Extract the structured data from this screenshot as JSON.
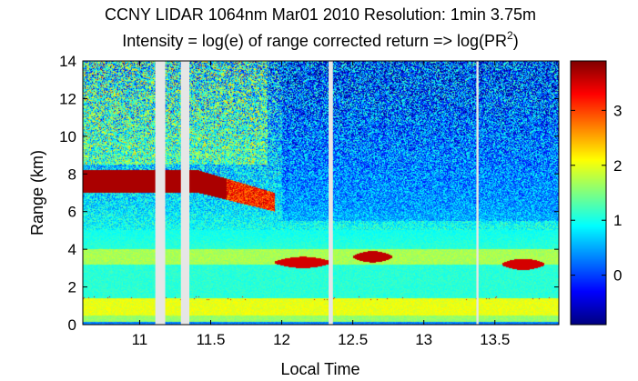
{
  "chart_data": {
    "type": "heatmap",
    "title": "CCNY LIDAR 1064nm Mar01 2010 Resolution: 1min 3.75m",
    "subtitle_prefix": "Intensity = log(e) of range corrected return => log(PR",
    "subtitle_superscript": "2",
    "subtitle_suffix": ")",
    "xlabel": "Local Time",
    "ylabel": "Range (km)",
    "xlim": [
      10.6,
      13.95
    ],
    "ylim": [
      0,
      14
    ],
    "xticks": [
      11,
      11.5,
      12,
      12.5,
      13,
      13.5
    ],
    "xtick_labels": [
      "11",
      "11.5",
      "12",
      "12.5",
      "13",
      "13.5"
    ],
    "yticks": [
      0,
      2,
      4,
      6,
      8,
      10,
      12,
      14
    ],
    "ytick_labels": [
      "0",
      "2",
      "4",
      "6",
      "8",
      "10",
      "12",
      "14"
    ],
    "colorbar": {
      "colormap": "jet",
      "clim": [
        -0.9,
        3.9
      ],
      "ticks": [
        0,
        1,
        2,
        3
      ],
      "tick_labels": [
        "0",
        "1",
        "2",
        "3"
      ]
    },
    "data_gaps_time": [
      [
        11.11,
        11.18
      ],
      [
        11.29,
        11.35
      ],
      [
        12.33,
        12.36
      ],
      [
        13.37,
        13.385
      ]
    ],
    "features": [
      {
        "kind": "smoke/aerosol layer",
        "t_start": 10.6,
        "t_end": 11.95,
        "range_top_km": 8.2,
        "range_bottom_km": 7.0,
        "intensity": 3.7
      },
      {
        "kind": "cloud",
        "t_start": 11.95,
        "t_end": 12.35,
        "range_km": 3.3,
        "intensity": 3.5
      },
      {
        "kind": "cloud",
        "t_start": 12.5,
        "t_end": 12.78,
        "range_km": 3.6,
        "intensity": 3.6
      },
      {
        "kind": "cloud",
        "t_start": 13.55,
        "t_end": 13.85,
        "range_km": 3.2,
        "intensity": 3.5
      },
      {
        "kind": "boundary layer",
        "range_bottom_km": 0.5,
        "range_top_km": 1.4,
        "intensity": 2.0
      },
      {
        "kind": "residual layer",
        "range_bottom_km": 3.2,
        "range_top_km": 4.0,
        "intensity": 1.8
      }
    ]
  },
  "colors": {
    "gap": "#e6e6e6",
    "background": "#ffffff",
    "axis": "#000000"
  }
}
